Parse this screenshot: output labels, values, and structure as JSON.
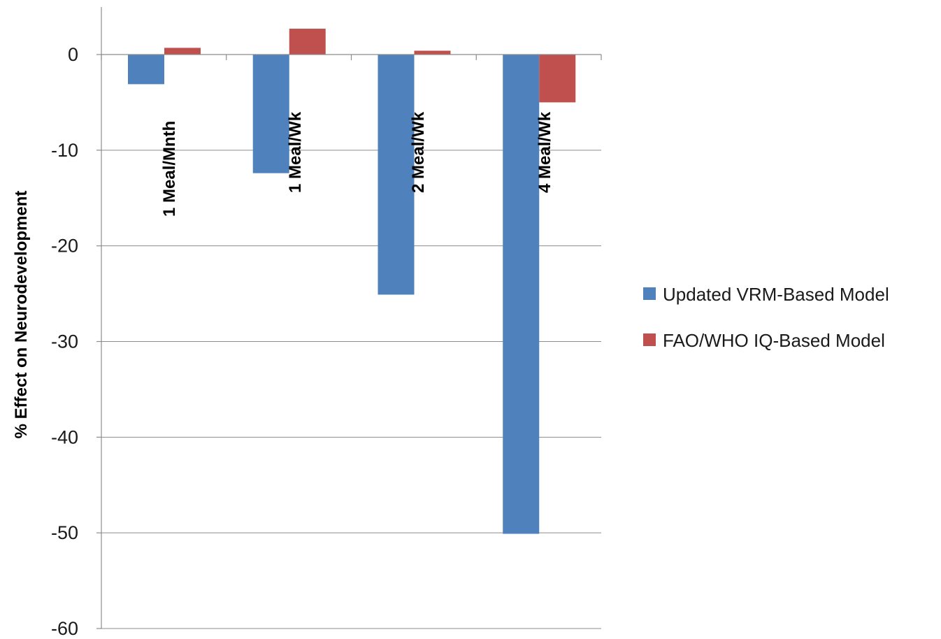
{
  "chart_data": {
    "type": "bar",
    "title": "",
    "xlabel": "",
    "ylabel": "% Effect on Neurodevelopment",
    "categories": [
      "1 Meal/Mnth",
      "1 Meal/Wk",
      "2 Meal/Wk",
      "4 Meal/Wk"
    ],
    "series": [
      {
        "name": "Updated VRM-Based Model",
        "color": "#4f81bd",
        "values": [
          -3.1,
          -12.4,
          -25.1,
          -50.1
        ]
      },
      {
        "name": "FAO/WHO IQ-Based Model",
        "color": "#c0504d",
        "values": [
          0.7,
          2.7,
          0.4,
          -5.0
        ]
      }
    ],
    "ylim": [
      -60,
      0
    ],
    "yticks": [
      0,
      -10,
      -20,
      -30,
      -40,
      -50,
      -60
    ],
    "grid": true,
    "legend_position": "right"
  }
}
